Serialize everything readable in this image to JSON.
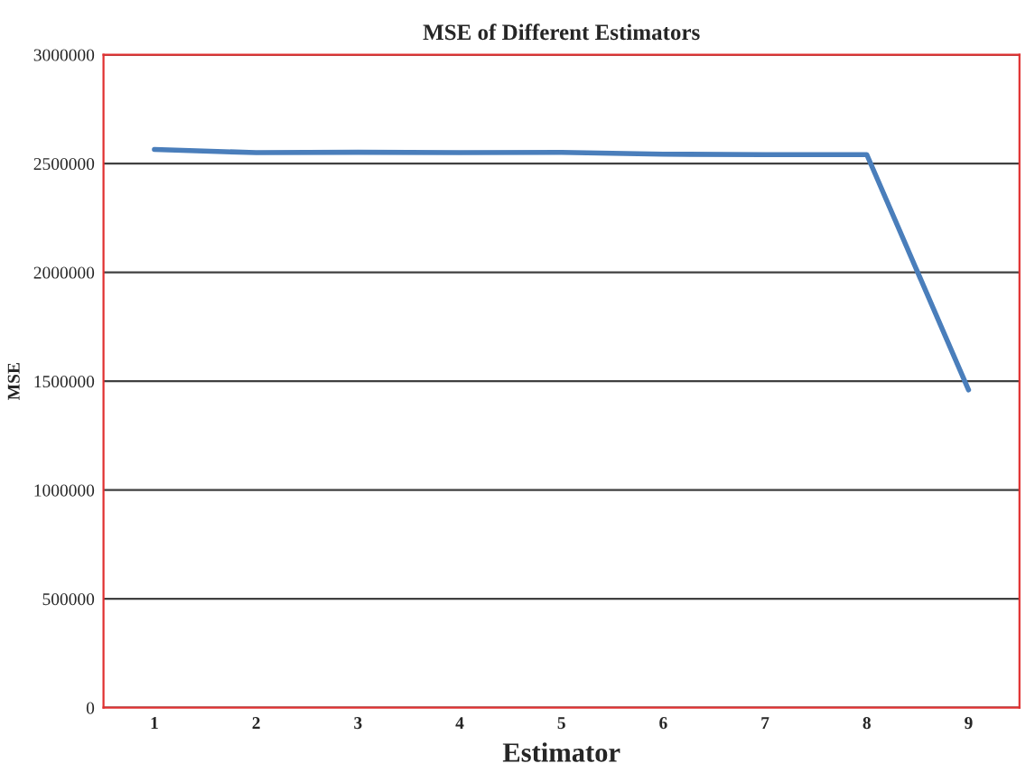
{
  "chart_data": {
    "type": "line",
    "title": "MSE of Different Estimators",
    "xlabel": "Estimator",
    "ylabel": "MSE",
    "categories": [
      "1",
      "2",
      "3",
      "4",
      "5",
      "6",
      "7",
      "8",
      "9"
    ],
    "series": [
      {
        "color": "#4a7ebb",
        "values": [
          2565000,
          2550000,
          2552000,
          2550000,
          2551000,
          2543000,
          2541000,
          2541000,
          1460000
        ]
      }
    ],
    "ylim": [
      0,
      3000000
    ],
    "yticks": [
      0,
      500000,
      1000000,
      1500000,
      2000000,
      2500000,
      3000000
    ],
    "grid": "y",
    "legend": false,
    "marker": "none",
    "line_style": "solid"
  }
}
